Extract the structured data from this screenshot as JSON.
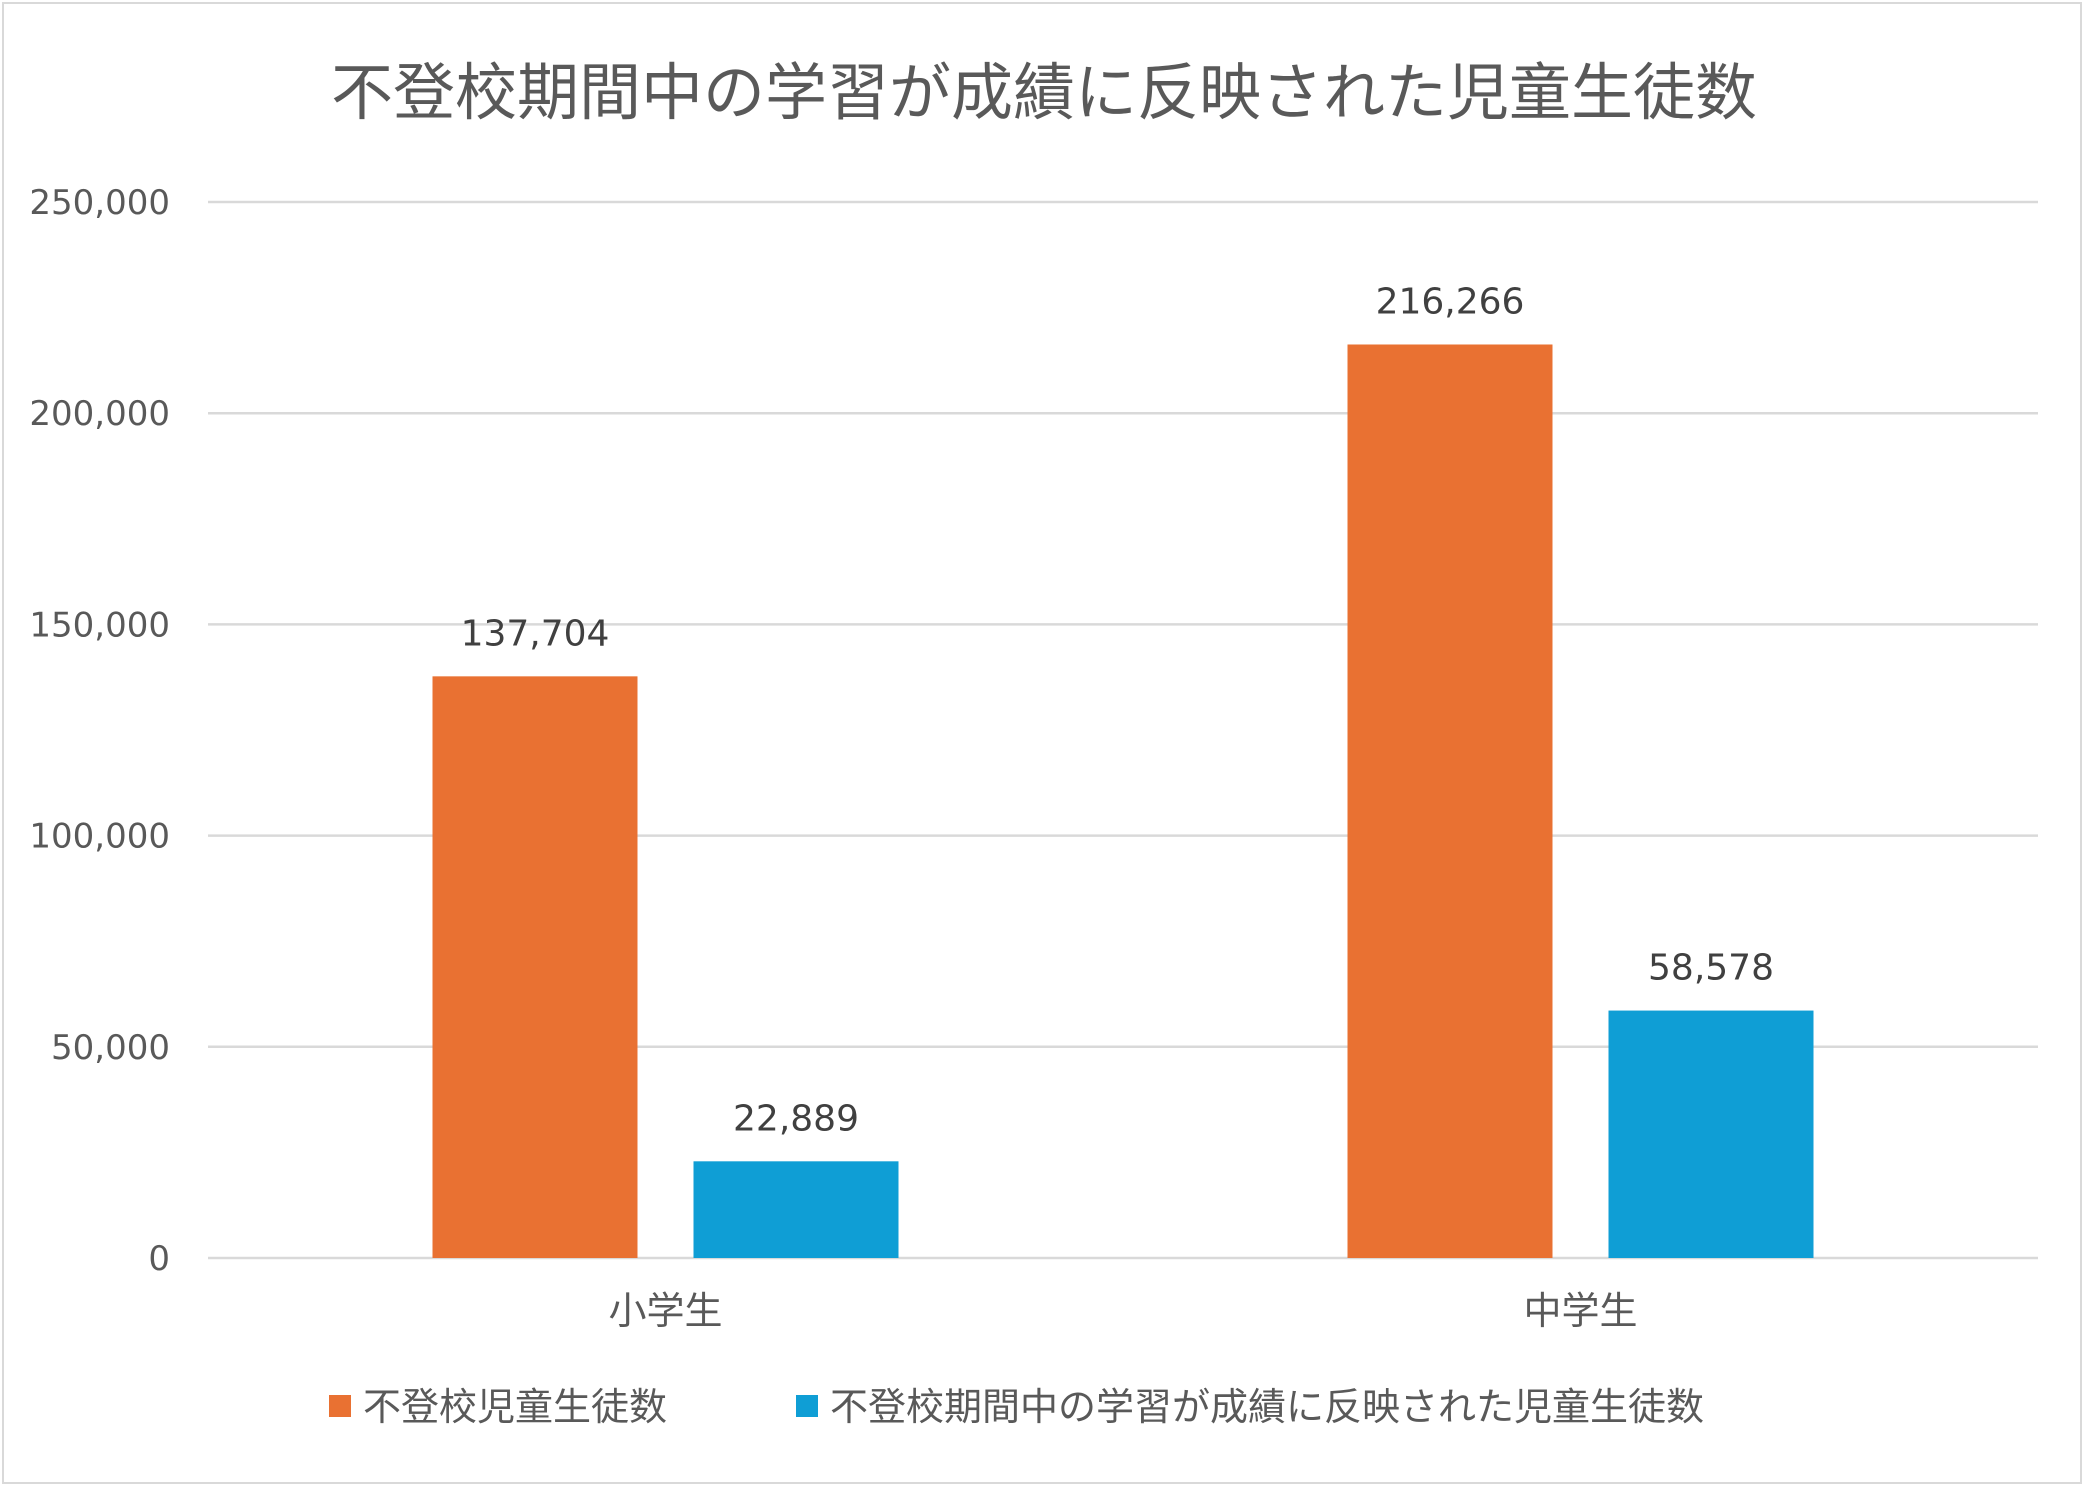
{
  "chart_data": {
    "type": "bar",
    "title": "不登校期間中の学習が成績に反映された児童生徒数",
    "categories": [
      "小学生",
      "中学生"
    ],
    "series": [
      {
        "name": "不登校児童生徒数",
        "values": [
          137704,
          216266
        ],
        "labels": [
          "137,704",
          "216,266"
        ],
        "color": "#E97132"
      },
      {
        "name": "不登校期間中の学習が成績に反映された児童生徒数",
        "values": [
          22889,
          58578
        ],
        "labels": [
          "22,889",
          "58,578"
        ],
        "color": "#0F9ED5"
      }
    ],
    "ylim": [
      0,
      250000
    ],
    "yticks": [
      0,
      50000,
      100000,
      150000,
      200000,
      250000
    ],
    "ytick_labels": [
      "0",
      "50,000",
      "100,000",
      "150,000",
      "200,000",
      "250,000"
    ],
    "grid": true,
    "legend_position": "bottom",
    "xlabel": "",
    "ylabel": ""
  }
}
